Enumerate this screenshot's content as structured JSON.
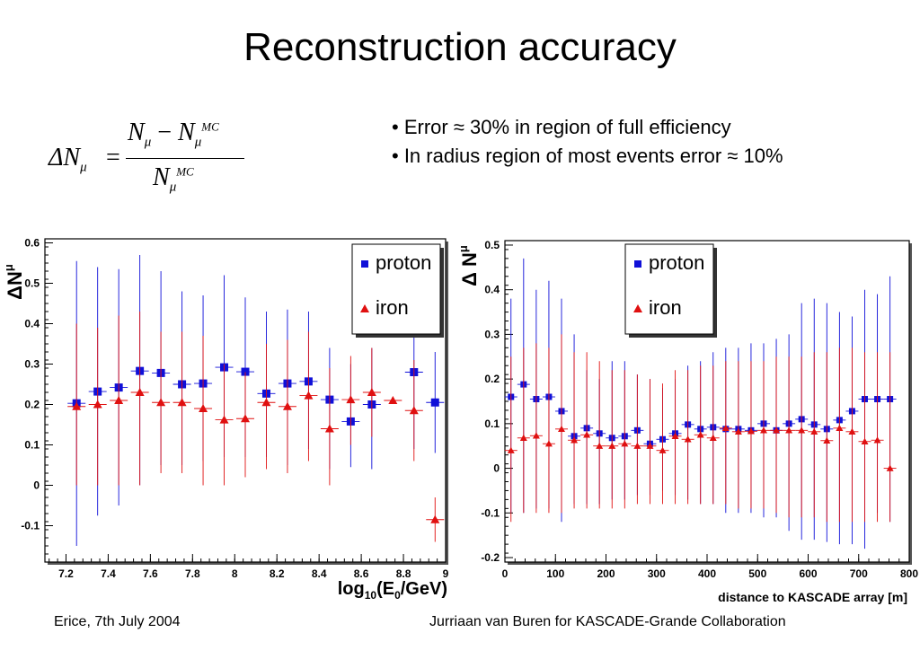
{
  "title": "Reconstruction accuracy",
  "bullets": [
    "• Error ≈ 30% in region of full efficiency",
    "• In radius region of most events error ≈ 10%"
  ],
  "formula": {
    "lhs": "ΔN",
    "lhs_sub": "μ",
    "eq": "=",
    "num_a": "N",
    "num_a_sub": "μ",
    "minus": " − ",
    "num_b": "N",
    "num_b_sub": "μ",
    "num_b_sup": "MC",
    "den": "N",
    "den_sub": "μ",
    "den_sup": "MC"
  },
  "footer": {
    "left": "Erice, 7th July 2004",
    "right": "Jurriaan van Buren for KASCADE-Grande Collaboration"
  },
  "colors": {
    "proton": "#1010d8",
    "iron": "#e01010"
  },
  "chart_data": [
    {
      "type": "scatter",
      "ylabel": "ΔN",
      "ylabel_sub": "μ",
      "xlabel": "log",
      "xlabel_sub": "10",
      "xlabel_tail_a": "(E",
      "xlabel_tail_sub": "0",
      "xlabel_tail_b": "/GeV)",
      "xlim": [
        7.1,
        9.0
      ],
      "ylim": [
        -0.19,
        0.61
      ],
      "x_ticks": [
        "7.2",
        "7.4",
        "7.6",
        "7.8",
        "8",
        "8.2",
        "8.4",
        "8.6",
        "8.8",
        "9"
      ],
      "y_ticks": [
        "-0.1",
        "0",
        "0.1",
        "0.2",
        "0.3",
        "0.4",
        "0.5",
        "0.6"
      ],
      "x_tick_values": [
        7.2,
        7.4,
        7.6,
        7.8,
        8.0,
        8.2,
        8.4,
        8.6,
        8.8,
        9.0
      ],
      "y_tick_values": [
        -0.1,
        0,
        0.1,
        0.2,
        0.3,
        0.4,
        0.5,
        0.6
      ],
      "legend_position": "top-right",
      "series": [
        {
          "name": "proton",
          "marker": "square",
          "color": "#1010d8",
          "x": [
            7.25,
            7.35,
            7.45,
            7.55,
            7.65,
            7.75,
            7.85,
            7.95,
            8.05,
            8.15,
            8.25,
            8.35,
            8.45,
            8.55,
            8.65,
            8.85,
            8.95
          ],
          "y": [
            0.203,
            0.232,
            0.242,
            0.283,
            0.278,
            0.25,
            0.252,
            0.292,
            0.281,
            0.227,
            0.252,
            0.257,
            0.212,
            0.158,
            0.2,
            0.28,
            0.205
          ],
          "yerr_low": [
            -0.15,
            -0.075,
            -0.05,
            0,
            0.05,
            0.05,
            0.06,
            0.07,
            0.07,
            0.07,
            0.05,
            0.09,
            0.04,
            0.045,
            0.04,
            0.09,
            0.08
          ],
          "yerr_high": [
            0.555,
            0.54,
            0.535,
            0.57,
            0.53,
            0.48,
            0.47,
            0.52,
            0.465,
            0.43,
            0.435,
            0.43,
            0.34,
            0.3,
            0.34,
            0.5,
            0.33
          ]
        },
        {
          "name": "iron",
          "marker": "triangle",
          "color": "#e01010",
          "x": [
            7.25,
            7.35,
            7.45,
            7.55,
            7.65,
            7.75,
            7.85,
            7.95,
            8.05,
            8.15,
            8.25,
            8.35,
            8.45,
            8.55,
            8.65,
            8.75,
            8.85,
            8.95
          ],
          "y": [
            0.195,
            0.2,
            0.21,
            0.23,
            0.205,
            0.205,
            0.19,
            0.162,
            0.165,
            0.205,
            0.195,
            0.222,
            0.14,
            0.212,
            0.23,
            0.21,
            0.185,
            -0.085
          ],
          "yerr_low": [
            0.0,
            0.0,
            0.0,
            0.0,
            0.03,
            0.03,
            0.0,
            0.0,
            0.02,
            0.04,
            0.03,
            0.06,
            0.0,
            0.1,
            0.12,
            0.21,
            0.06,
            -0.14
          ],
          "yerr_high": [
            0.4,
            0.39,
            0.42,
            0.43,
            0.38,
            0.38,
            0.37,
            0.3,
            0.28,
            0.35,
            0.36,
            0.38,
            0.29,
            0.32,
            0.34,
            0.21,
            0.31,
            -0.03
          ]
        }
      ]
    },
    {
      "type": "scatter",
      "ylabel": "Δ N",
      "ylabel_sub": "μ",
      "xlabel": "distance to KASCADE array [m]",
      "xlim": [
        0,
        800
      ],
      "ylim": [
        -0.21,
        0.51
      ],
      "x_ticks": [
        "0",
        "100",
        "200",
        "300",
        "400",
        "500",
        "600",
        "700",
        "800"
      ],
      "y_ticks": [
        "-0.2",
        "-0.1",
        "0",
        "0.1",
        "0.2",
        "0.3",
        "0.4",
        "0.5"
      ],
      "x_tick_values": [
        0,
        100,
        200,
        300,
        400,
        500,
        600,
        700,
        800
      ],
      "y_tick_values": [
        -0.2,
        -0.1,
        0,
        0.1,
        0.2,
        0.3,
        0.4,
        0.5
      ],
      "legend_position": "top-center",
      "series": [
        {
          "name": "proton",
          "marker": "square",
          "color": "#1010d8",
          "x": [
            12,
            37,
            62,
            87,
            112,
            137,
            162,
            187,
            212,
            237,
            262,
            287,
            312,
            337,
            362,
            387,
            412,
            437,
            462,
            487,
            512,
            537,
            562,
            587,
            612,
            637,
            662,
            687,
            712,
            737,
            762
          ],
          "y": [
            0.16,
            0.188,
            0.155,
            0.16,
            0.128,
            0.072,
            0.09,
            0.078,
            0.068,
            0.072,
            0.085,
            0.055,
            0.065,
            0.078,
            0.098,
            0.088,
            0.092,
            0.088,
            0.088,
            0.085,
            0.1,
            0.085,
            0.1,
            0.11,
            0.098,
            0.088,
            0.108,
            0.128,
            0.155,
            0.155,
            0.155
          ],
          "yerr_low": [
            -0.1,
            -0.1,
            -0.09,
            -0.09,
            -0.12,
            -0.08,
            -0.08,
            -0.08,
            -0.07,
            -0.07,
            -0.06,
            -0.06,
            -0.05,
            -0.06,
            -0.07,
            -0.08,
            -0.08,
            -0.1,
            -0.1,
            -0.1,
            -0.11,
            -0.11,
            -0.14,
            -0.16,
            -0.16,
            -0.165,
            -0.17,
            -0.17,
            -0.18,
            -0.1,
            -0.12
          ],
          "yerr_high": [
            0.38,
            0.47,
            0.4,
            0.42,
            0.38,
            0.3,
            0.22,
            0.2,
            0.24,
            0.24,
            0.21,
            0.2,
            0.18,
            0.2,
            0.23,
            0.24,
            0.26,
            0.27,
            0.27,
            0.28,
            0.28,
            0.29,
            0.3,
            0.37,
            0.38,
            0.37,
            0.35,
            0.34,
            0.4,
            0.39,
            0.43
          ]
        },
        {
          "name": "iron",
          "marker": "triangle",
          "color": "#e01010",
          "x": [
            12,
            37,
            62,
            87,
            112,
            137,
            162,
            187,
            212,
            237,
            262,
            287,
            312,
            337,
            362,
            387,
            412,
            437,
            462,
            487,
            512,
            537,
            562,
            587,
            612,
            637,
            662,
            687,
            712,
            737,
            762
          ],
          "y": [
            0.04,
            0.068,
            0.073,
            0.055,
            0.088,
            0.063,
            0.075,
            0.05,
            0.05,
            0.055,
            0.05,
            0.05,
            0.04,
            0.072,
            0.065,
            0.075,
            0.068,
            0.09,
            0.082,
            0.083,
            0.085,
            0.085,
            0.085,
            0.085,
            0.082,
            0.062,
            0.09,
            0.082,
            0.06,
            0.063,
            0.0
          ],
          "yerr_low": [
            -0.12,
            -0.1,
            -0.1,
            -0.1,
            -0.1,
            -0.09,
            -0.09,
            -0.09,
            -0.09,
            -0.09,
            -0.08,
            -0.08,
            -0.08,
            -0.08,
            -0.08,
            -0.08,
            -0.08,
            -0.08,
            -0.09,
            -0.09,
            -0.09,
            -0.1,
            -0.11,
            -0.11,
            -0.11,
            -0.12,
            -0.12,
            -0.12,
            -0.12,
            -0.12,
            -0.12
          ],
          "yerr_high": [
            0.25,
            0.27,
            0.28,
            0.27,
            0.3,
            0.26,
            0.26,
            0.24,
            0.22,
            0.22,
            0.21,
            0.2,
            0.19,
            0.22,
            0.22,
            0.23,
            0.23,
            0.24,
            0.24,
            0.24,
            0.24,
            0.25,
            0.25,
            0.25,
            0.26,
            0.26,
            0.27,
            0.27,
            0.26,
            0.26,
            0.26
          ]
        }
      ]
    }
  ]
}
